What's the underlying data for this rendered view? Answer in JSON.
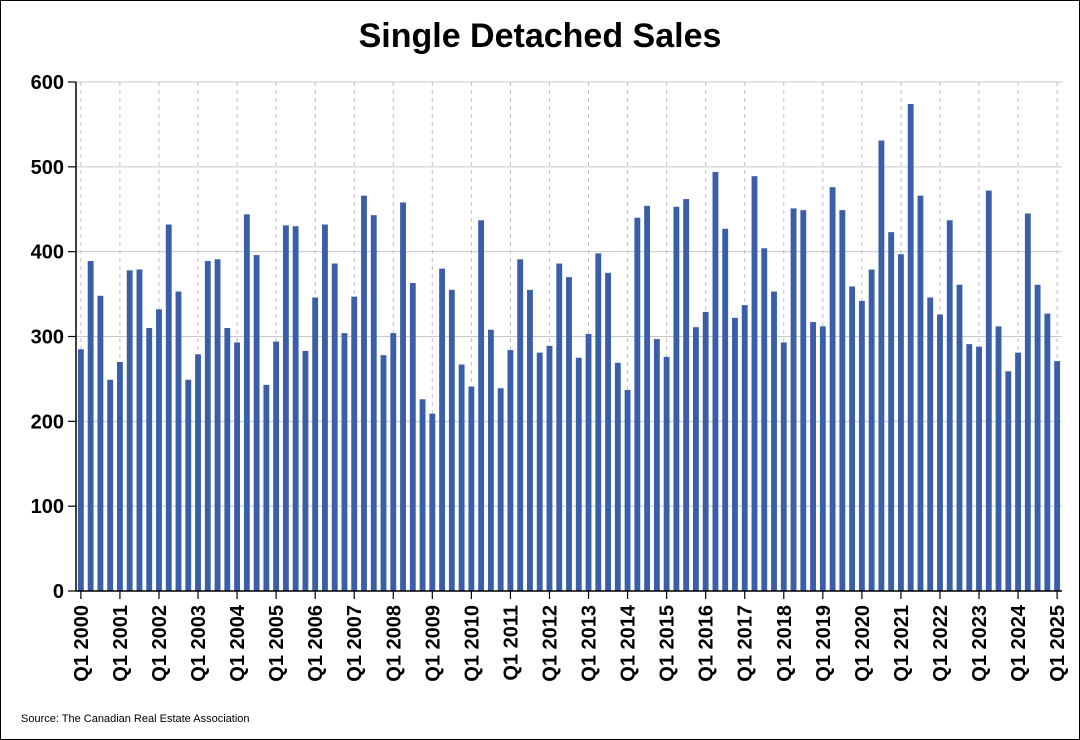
{
  "chart_data": {
    "type": "bar",
    "title": "Single Detached Sales",
    "xlabel": "",
    "ylabel": "",
    "ylim": [
      0,
      600
    ],
    "yticks": [
      0,
      100,
      200,
      300,
      400,
      500,
      600
    ],
    "grid": {
      "horizontal": true,
      "vertical": "dashed"
    },
    "bar_color": "#3a5fa8",
    "tick_labels": [
      "Q1 2000",
      "Q1 2001",
      "Q1 2002",
      "Q1 2003",
      "Q1 2004",
      "Q1 2005",
      "Q1 2006",
      "Q1 2007",
      "Q1 2008",
      "Q1 2009",
      "Q1 2010",
      "Q1 2011",
      "Q1 2012",
      "Q1 2013",
      "Q1 2014",
      "Q1 2015",
      "Q1 2016",
      "Q1 2017",
      "Q1 2018",
      "Q1 2019",
      "Q1 2020",
      "Q1 2021",
      "Q1 2022",
      "Q1 2023",
      "Q1 2024",
      "Q1 2025"
    ],
    "categories": [
      "Q1 2000",
      "Q2 2000",
      "Q3 2000",
      "Q4 2000",
      "Q1 2001",
      "Q2 2001",
      "Q3 2001",
      "Q4 2001",
      "Q1 2002",
      "Q2 2002",
      "Q3 2002",
      "Q4 2002",
      "Q1 2003",
      "Q2 2003",
      "Q3 2003",
      "Q4 2003",
      "Q1 2004",
      "Q2 2004",
      "Q3 2004",
      "Q4 2004",
      "Q1 2005",
      "Q2 2005",
      "Q3 2005",
      "Q4 2005",
      "Q1 2006",
      "Q2 2006",
      "Q3 2006",
      "Q4 2006",
      "Q1 2007",
      "Q2 2007",
      "Q3 2007",
      "Q4 2007",
      "Q1 2008",
      "Q2 2008",
      "Q3 2008",
      "Q4 2008",
      "Q1 2009",
      "Q2 2009",
      "Q3 2009",
      "Q4 2009",
      "Q1 2010",
      "Q2 2010",
      "Q3 2010",
      "Q4 2010",
      "Q1 2011",
      "Q2 2011",
      "Q3 2011",
      "Q4 2011",
      "Q1 2012",
      "Q2 2012",
      "Q3 2012",
      "Q4 2012",
      "Q1 2013",
      "Q2 2013",
      "Q3 2013",
      "Q4 2013",
      "Q1 2014",
      "Q2 2014",
      "Q3 2014",
      "Q4 2014",
      "Q1 2015",
      "Q2 2015",
      "Q3 2015",
      "Q4 2015",
      "Q1 2016",
      "Q2 2016",
      "Q3 2016",
      "Q4 2016",
      "Q1 2017",
      "Q2 2017",
      "Q3 2017",
      "Q4 2017",
      "Q1 2018",
      "Q2 2018",
      "Q3 2018",
      "Q4 2018",
      "Q1 2019",
      "Q2 2019",
      "Q3 2019",
      "Q4 2019",
      "Q1 2020",
      "Q2 2020",
      "Q3 2020",
      "Q4 2020",
      "Q1 2021",
      "Q2 2021",
      "Q3 2021",
      "Q4 2021",
      "Q1 2022",
      "Q2 2022",
      "Q3 2022",
      "Q4 2022",
      "Q1 2023",
      "Q2 2023",
      "Q3 2023",
      "Q4 2023",
      "Q1 2024",
      "Q2 2024",
      "Q3 2024",
      "Q4 2024",
      "Q1 2025"
    ],
    "values": [
      285,
      389,
      348,
      249,
      270,
      378,
      379,
      310,
      332,
      432,
      353,
      249,
      279,
      389,
      391,
      310,
      293,
      444,
      396,
      243,
      294,
      431,
      430,
      283,
      346,
      432,
      386,
      304,
      347,
      466,
      443,
      278,
      304,
      458,
      363,
      226,
      209,
      380,
      355,
      267,
      241,
      437,
      308,
      239,
      284,
      391,
      355,
      281,
      289,
      386,
      370,
      275,
      303,
      398,
      375,
      269,
      237,
      440,
      454,
      297,
      276,
      453,
      462,
      311,
      329,
      494,
      427,
      322,
      337,
      489,
      404,
      353,
      293,
      451,
      449,
      317,
      312,
      476,
      449,
      359,
      342,
      379,
      531,
      423,
      397,
      574,
      466,
      346,
      326,
      437,
      361,
      291,
      288,
      472,
      312,
      259,
      281,
      445,
      361,
      327,
      271
    ]
  },
  "source": "Source: The Canadian Real Estate Association"
}
